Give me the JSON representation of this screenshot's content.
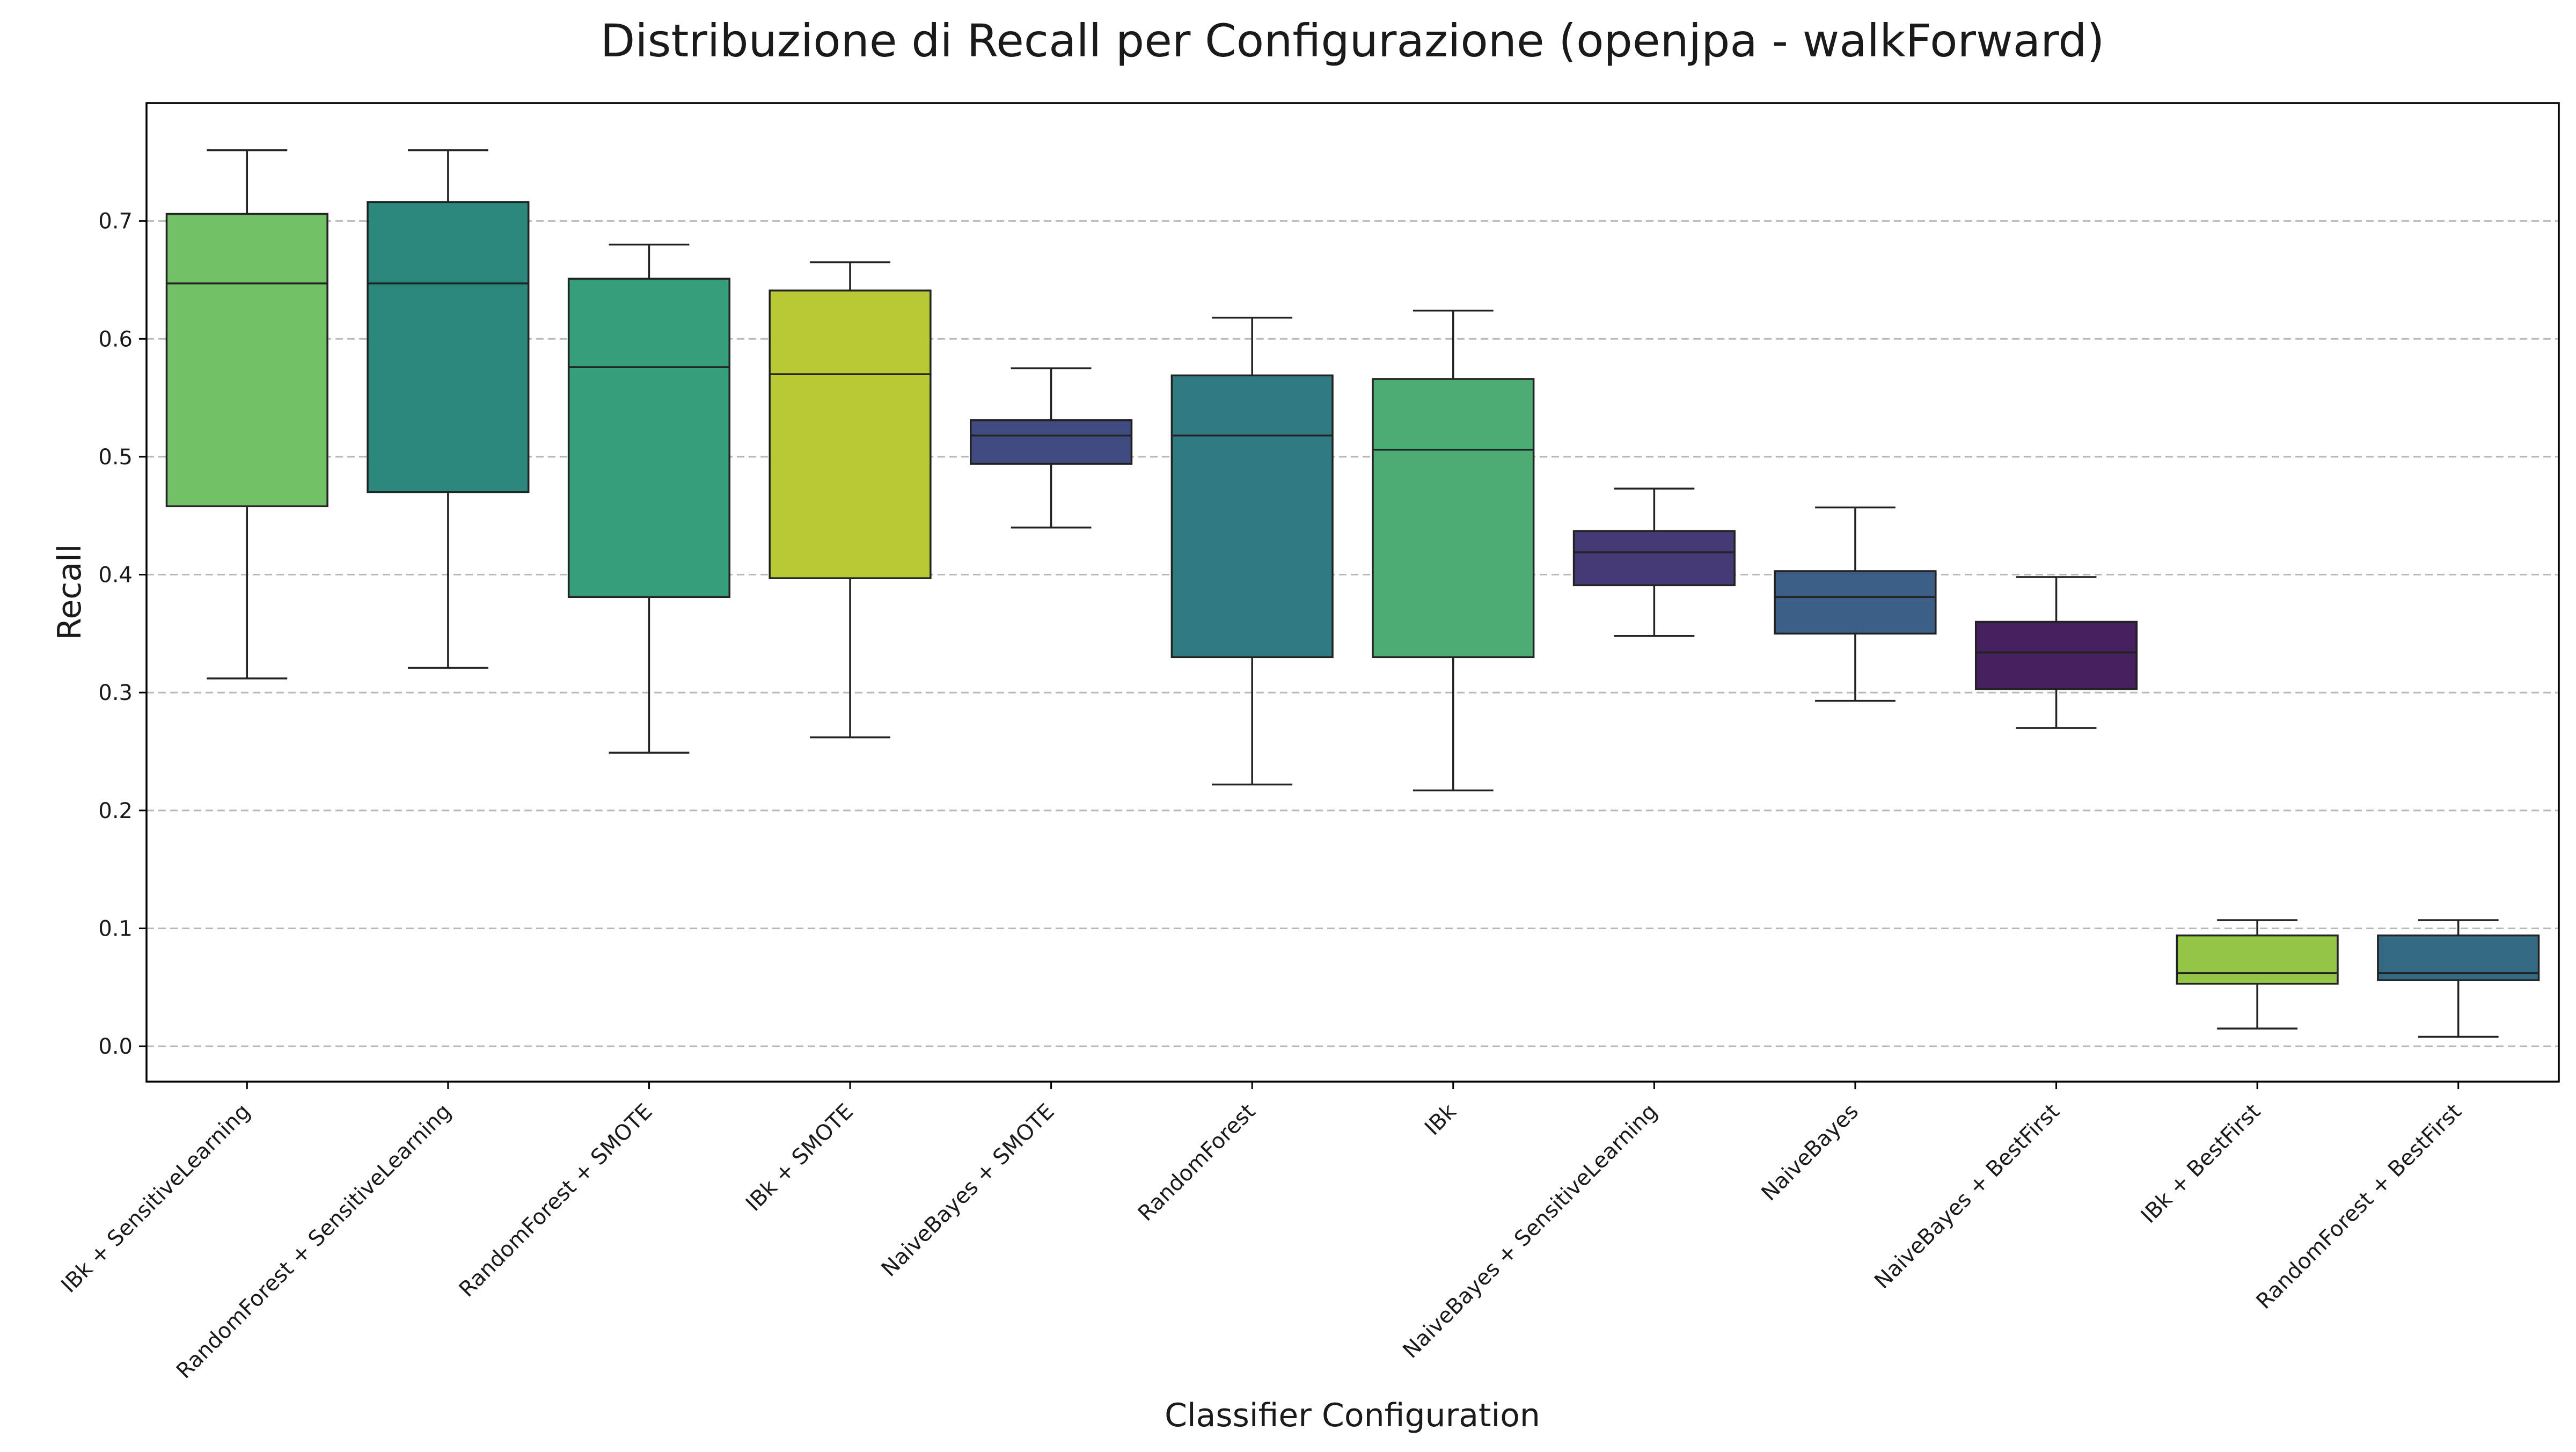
{
  "chart_data": {
    "type": "box",
    "title": "Distribuzione di Recall per Configurazione (openjpa - walkForward)",
    "xlabel": "Classifier Configuration",
    "ylabel": "Recall",
    "ylim": [
      -0.03,
      0.8
    ],
    "yticks": [
      "0.0",
      "0.1",
      "0.2",
      "0.3",
      "0.4",
      "0.5",
      "0.6",
      "0.7"
    ],
    "grid": "horizontal-dashed",
    "series": [
      {
        "label": "IBk + SensitiveLearning",
        "min": 0.312,
        "q1": 0.458,
        "median": 0.647,
        "q3": 0.706,
        "max": 0.76,
        "color": "#74c069"
      },
      {
        "label": "RandomForest + SensitiveLearning",
        "min": 0.321,
        "q1": 0.47,
        "median": 0.647,
        "q3": 0.716,
        "max": 0.76,
        "color": "#2c887c"
      },
      {
        "label": "RandomForest + SMOTE",
        "min": 0.249,
        "q1": 0.381,
        "median": 0.576,
        "q3": 0.651,
        "max": 0.68,
        "color": "#379e7b"
      },
      {
        "label": "IBk + SMOTE",
        "min": 0.262,
        "q1": 0.397,
        "median": 0.57,
        "q3": 0.641,
        "max": 0.665,
        "color": "#b9c933"
      },
      {
        "label": "NaiveBayes + SMOTE",
        "min": 0.44,
        "q1": 0.494,
        "median": 0.518,
        "q3": 0.531,
        "max": 0.575,
        "color": "#414b81"
      },
      {
        "label": "RandomForest",
        "min": 0.222,
        "q1": 0.33,
        "median": 0.518,
        "q3": 0.569,
        "max": 0.618,
        "color": "#2f7a80"
      },
      {
        "label": "IBk",
        "min": 0.217,
        "q1": 0.33,
        "median": 0.506,
        "q3": 0.566,
        "max": 0.624,
        "color": "#4dac71"
      },
      {
        "label": "NaiveBayes + SensitiveLearning",
        "min": 0.348,
        "q1": 0.391,
        "median": 0.419,
        "q3": 0.437,
        "max": 0.473,
        "color": "#463a75"
      },
      {
        "label": "NaiveBayes",
        "min": 0.293,
        "q1": 0.35,
        "median": 0.381,
        "q3": 0.403,
        "max": 0.457,
        "color": "#3c5e87"
      },
      {
        "label": "NaiveBayes + BestFirst",
        "min": 0.27,
        "q1": 0.303,
        "median": 0.334,
        "q3": 0.36,
        "max": 0.398,
        "color": "#46205f"
      },
      {
        "label": "IBk + BestFirst",
        "min": 0.015,
        "q1": 0.053,
        "median": 0.062,
        "q3": 0.094,
        "max": 0.107,
        "color": "#94c547"
      },
      {
        "label": "RandomForest + BestFirst",
        "min": 0.008,
        "q1": 0.056,
        "median": 0.062,
        "q3": 0.094,
        "max": 0.107,
        "color": "#356a84"
      }
    ]
  }
}
